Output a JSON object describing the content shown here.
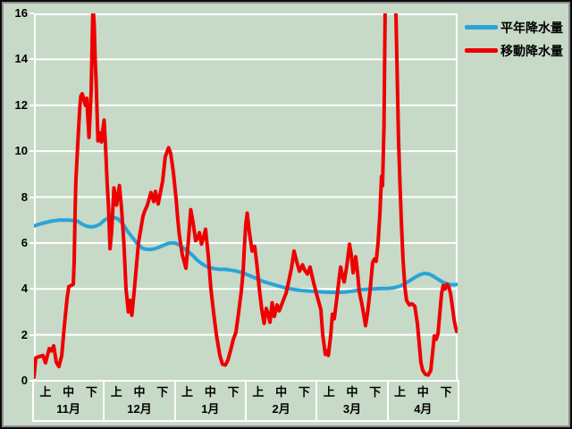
{
  "styles": {
    "background": "#c7d9c7",
    "grid_color": "#ffffff",
    "text_color": "#000000",
    "border_outer": "#0a0a0a",
    "border_inner": "#8f8f8f"
  },
  "legend": {
    "items": [
      {
        "label": "平年降水量",
        "color": "#2aa4d8"
      },
      {
        "label": "移動降水量",
        "color": "#ee0000"
      }
    ]
  },
  "chart_data": {
    "type": "line",
    "title": "",
    "xlabel": "",
    "ylabel": "",
    "ylim": [
      0,
      16
    ],
    "yticks": [
      0,
      2,
      4,
      6,
      8,
      10,
      12,
      14,
      16
    ],
    "grid": true,
    "legend_position": "top-right",
    "x_axis": {
      "months": [
        "11月",
        "12月",
        "1月",
        "2月",
        "3月",
        "4月"
      ],
      "decade_labels": [
        "上",
        "中",
        "下"
      ],
      "units_per_month": 3,
      "total_units": 18
    },
    "series": [
      {
        "name": "平年降水量",
        "color": "#2aa4d8",
        "points": [
          [
            0,
            6.74
          ],
          [
            0.34,
            6.85
          ],
          [
            0.72,
            6.95
          ],
          [
            1.1,
            7.0
          ],
          [
            1.48,
            7.0
          ],
          [
            1.86,
            6.95
          ],
          [
            2.05,
            6.82
          ],
          [
            2.24,
            6.73
          ],
          [
            2.43,
            6.7
          ],
          [
            2.62,
            6.73
          ],
          [
            2.81,
            6.82
          ],
          [
            3.0,
            7.0
          ],
          [
            3.19,
            7.1
          ],
          [
            3.38,
            7.12
          ],
          [
            3.57,
            7.05
          ],
          [
            3.76,
            6.85
          ],
          [
            3.95,
            6.55
          ],
          [
            4.14,
            6.3
          ],
          [
            4.33,
            6.05
          ],
          [
            4.44,
            5.92
          ],
          [
            4.6,
            5.78
          ],
          [
            4.71,
            5.74
          ],
          [
            4.9,
            5.72
          ],
          [
            5.09,
            5.74
          ],
          [
            5.28,
            5.8
          ],
          [
            5.51,
            5.9
          ],
          [
            5.77,
            6.0
          ],
          [
            6.0,
            6.0
          ],
          [
            6.19,
            5.9
          ],
          [
            6.34,
            5.78
          ],
          [
            6.49,
            5.68
          ],
          [
            6.72,
            5.48
          ],
          [
            6.91,
            5.28
          ],
          [
            7.1,
            5.12
          ],
          [
            7.29,
            5.0
          ],
          [
            7.48,
            4.92
          ],
          [
            7.67,
            4.88
          ],
          [
            7.9,
            4.85
          ],
          [
            8.13,
            4.85
          ],
          [
            8.35,
            4.82
          ],
          [
            8.58,
            4.78
          ],
          [
            8.81,
            4.72
          ],
          [
            9.0,
            4.65
          ],
          [
            9.23,
            4.55
          ],
          [
            9.46,
            4.45
          ],
          [
            9.68,
            4.35
          ],
          [
            9.91,
            4.27
          ],
          [
            10.14,
            4.2
          ],
          [
            10.41,
            4.12
          ],
          [
            10.67,
            4.05
          ],
          [
            10.94,
            4.0
          ],
          [
            11.2,
            3.95
          ],
          [
            11.47,
            3.92
          ],
          [
            11.73,
            3.9
          ],
          [
            12.0,
            3.88
          ],
          [
            12.3,
            3.86
          ],
          [
            12.61,
            3.85
          ],
          [
            12.91,
            3.85
          ],
          [
            13.22,
            3.86
          ],
          [
            13.52,
            3.9
          ],
          [
            13.82,
            3.95
          ],
          [
            14.13,
            3.98
          ],
          [
            14.43,
            4.0
          ],
          [
            14.73,
            4.02
          ],
          [
            15.04,
            4.02
          ],
          [
            15.27,
            4.05
          ],
          [
            15.49,
            4.1
          ],
          [
            15.72,
            4.2
          ],
          [
            15.95,
            4.35
          ],
          [
            16.18,
            4.5
          ],
          [
            16.4,
            4.62
          ],
          [
            16.59,
            4.68
          ],
          [
            16.78,
            4.65
          ],
          [
            16.97,
            4.55
          ],
          [
            17.17,
            4.42
          ],
          [
            17.36,
            4.3
          ],
          [
            17.55,
            4.22
          ],
          [
            17.74,
            4.18
          ],
          [
            17.85,
            4.18
          ],
          [
            18.0,
            4.2
          ]
        ]
      },
      {
        "name": "移動降水量",
        "color": "#ee0000",
        "points": [
          [
            0,
            0.15
          ],
          [
            0.08,
            1.0
          ],
          [
            0.38,
            1.1
          ],
          [
            0.49,
            0.78
          ],
          [
            0.65,
            1.4
          ],
          [
            0.74,
            1.3
          ],
          [
            0.84,
            1.52
          ],
          [
            0.95,
            0.8
          ],
          [
            1.06,
            0.62
          ],
          [
            1.18,
            1.1
          ],
          [
            1.29,
            2.4
          ],
          [
            1.41,
            3.6
          ],
          [
            1.48,
            4.1
          ],
          [
            1.67,
            4.2
          ],
          [
            1.71,
            5.2
          ],
          [
            1.75,
            7.5
          ],
          [
            1.78,
            8.7
          ],
          [
            1.86,
            10.3
          ],
          [
            1.94,
            11.8
          ],
          [
            1.99,
            12.4
          ],
          [
            2.05,
            12.5
          ],
          [
            2.13,
            12.2
          ],
          [
            2.18,
            12.0
          ],
          [
            2.24,
            12.3
          ],
          [
            2.34,
            10.6
          ],
          [
            2.43,
            12.6
          ],
          [
            2.47,
            14.5
          ],
          [
            2.5,
            16.0
          ],
          [
            2.53,
            16.0
          ],
          [
            2.56,
            15.5
          ],
          [
            2.6,
            14.0
          ],
          [
            2.64,
            13.1
          ],
          [
            2.72,
            10.45
          ],
          [
            2.79,
            10.8
          ],
          [
            2.87,
            10.4
          ],
          [
            2.92,
            10.9
          ],
          [
            2.98,
            11.35
          ],
          [
            3.04,
            10.2
          ],
          [
            3.11,
            8.6
          ],
          [
            3.17,
            7.5
          ],
          [
            3.23,
            5.75
          ],
          [
            3.3,
            6.5
          ],
          [
            3.4,
            8.4
          ],
          [
            3.51,
            7.65
          ],
          [
            3.63,
            8.5
          ],
          [
            3.72,
            7.5
          ],
          [
            3.82,
            6.0
          ],
          [
            3.91,
            4.0
          ],
          [
            4.01,
            3.0
          ],
          [
            4.08,
            3.5
          ],
          [
            4.16,
            2.85
          ],
          [
            4.27,
            4.0
          ],
          [
            4.44,
            6.0
          ],
          [
            4.63,
            7.15
          ],
          [
            4.71,
            7.4
          ],
          [
            4.82,
            7.65
          ],
          [
            4.97,
            8.2
          ],
          [
            5.09,
            7.8
          ],
          [
            5.16,
            8.25
          ],
          [
            5.28,
            7.7
          ],
          [
            5.47,
            8.7
          ],
          [
            5.58,
            9.75
          ],
          [
            5.72,
            10.15
          ],
          [
            5.81,
            9.9
          ],
          [
            5.92,
            9.1
          ],
          [
            6.04,
            7.9
          ],
          [
            6.11,
            7.05
          ],
          [
            6.17,
            6.4
          ],
          [
            6.3,
            5.5
          ],
          [
            6.46,
            4.9
          ],
          [
            6.57,
            6.2
          ],
          [
            6.66,
            7.45
          ],
          [
            6.76,
            6.9
          ],
          [
            6.87,
            6.1
          ],
          [
            6.95,
            6.2
          ],
          [
            7.03,
            6.45
          ],
          [
            7.12,
            5.95
          ],
          [
            7.22,
            6.3
          ],
          [
            7.29,
            6.6
          ],
          [
            7.4,
            5.5
          ],
          [
            7.52,
            4.0
          ],
          [
            7.63,
            3.0
          ],
          [
            7.75,
            2.0
          ],
          [
            7.9,
            1.1
          ],
          [
            8.01,
            0.72
          ],
          [
            8.13,
            0.68
          ],
          [
            8.24,
            0.9
          ],
          [
            8.35,
            1.3
          ],
          [
            8.47,
            1.8
          ],
          [
            8.58,
            2.1
          ],
          [
            8.7,
            3.0
          ],
          [
            8.81,
            3.9
          ],
          [
            8.89,
            4.8
          ],
          [
            8.94,
            5.8
          ],
          [
            9.0,
            6.8
          ],
          [
            9.06,
            7.3
          ],
          [
            9.15,
            6.5
          ],
          [
            9.27,
            5.65
          ],
          [
            9.38,
            5.85
          ],
          [
            9.48,
            5.0
          ],
          [
            9.57,
            4.05
          ],
          [
            9.68,
            3.1
          ],
          [
            9.78,
            2.5
          ],
          [
            9.87,
            3.15
          ],
          [
            9.95,
            2.9
          ],
          [
            10.03,
            2.55
          ],
          [
            10.12,
            3.4
          ],
          [
            10.21,
            2.8
          ],
          [
            10.33,
            3.3
          ],
          [
            10.42,
            3.05
          ],
          [
            10.52,
            3.3
          ],
          [
            10.63,
            3.6
          ],
          [
            10.71,
            3.8
          ],
          [
            10.82,
            4.3
          ],
          [
            10.94,
            4.9
          ],
          [
            11.05,
            5.65
          ],
          [
            11.16,
            5.2
          ],
          [
            11.28,
            4.77
          ],
          [
            11.41,
            5.05
          ],
          [
            11.51,
            4.8
          ],
          [
            11.62,
            4.65
          ],
          [
            11.73,
            4.95
          ],
          [
            11.85,
            4.4
          ],
          [
            12.0,
            3.8
          ],
          [
            12.11,
            3.4
          ],
          [
            12.19,
            3.1
          ],
          [
            12.27,
            2.0
          ],
          [
            12.38,
            1.15
          ],
          [
            12.46,
            1.3
          ],
          [
            12.51,
            1.1
          ],
          [
            12.61,
            2.0
          ],
          [
            12.68,
            2.9
          ],
          [
            12.76,
            2.7
          ],
          [
            12.87,
            3.6
          ],
          [
            12.95,
            4.3
          ],
          [
            13.03,
            4.95
          ],
          [
            13.1,
            4.6
          ],
          [
            13.18,
            4.3
          ],
          [
            13.29,
            5.0
          ],
          [
            13.41,
            5.95
          ],
          [
            13.48,
            5.5
          ],
          [
            13.56,
            4.7
          ],
          [
            13.67,
            5.4
          ],
          [
            13.75,
            4.7
          ],
          [
            13.82,
            3.9
          ],
          [
            13.94,
            3.3
          ],
          [
            14.01,
            2.9
          ],
          [
            14.09,
            2.4
          ],
          [
            14.18,
            3.0
          ],
          [
            14.28,
            3.9
          ],
          [
            14.39,
            5.15
          ],
          [
            14.47,
            5.3
          ],
          [
            14.54,
            5.2
          ],
          [
            14.62,
            6.0
          ],
          [
            14.7,
            7.3
          ],
          [
            14.77,
            8.9
          ],
          [
            14.81,
            8.5
          ],
          [
            14.87,
            11.0
          ],
          [
            14.92,
            16.0
          ],
          [
            15.0,
            18.5
          ],
          [
            15.19,
            19.0
          ],
          [
            15.34,
            18.5
          ],
          [
            15.38,
            16.0
          ],
          [
            15.44,
            13.0
          ],
          [
            15.49,
            10.5
          ],
          [
            15.55,
            8.6
          ],
          [
            15.61,
            6.9
          ],
          [
            15.68,
            5.3
          ],
          [
            15.76,
            4.1
          ],
          [
            15.83,
            3.5
          ],
          [
            15.95,
            3.3
          ],
          [
            16.06,
            3.35
          ],
          [
            16.18,
            3.25
          ],
          [
            16.29,
            2.5
          ],
          [
            16.37,
            1.6
          ],
          [
            16.44,
            0.8
          ],
          [
            16.52,
            0.45
          ],
          [
            16.63,
            0.28
          ],
          [
            16.75,
            0.25
          ],
          [
            16.86,
            0.45
          ],
          [
            16.94,
            1.25
          ],
          [
            17.01,
            1.95
          ],
          [
            17.09,
            1.8
          ],
          [
            17.17,
            2.05
          ],
          [
            17.24,
            2.9
          ],
          [
            17.32,
            3.8
          ],
          [
            17.39,
            4.15
          ],
          [
            17.47,
            4.0
          ],
          [
            17.55,
            4.2
          ],
          [
            17.62,
            4.1
          ],
          [
            17.7,
            3.8
          ],
          [
            17.77,
            3.3
          ],
          [
            17.85,
            2.65
          ],
          [
            17.92,
            2.3
          ],
          [
            17.96,
            2.15
          ]
        ]
      }
    ]
  }
}
